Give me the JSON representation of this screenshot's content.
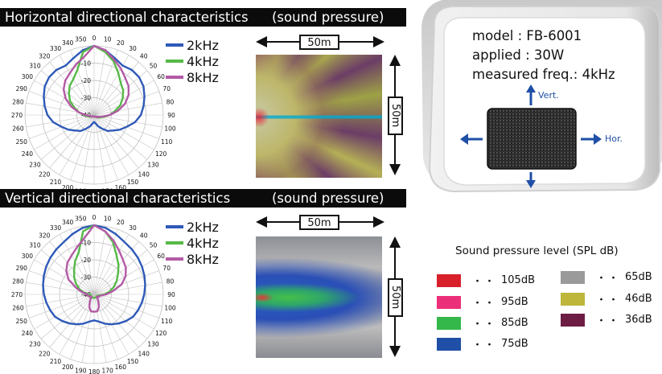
{
  "horizontal": {
    "title": "Horizontal directional characteristics",
    "subtitle": "(sound pressure)",
    "distance_x": "50m",
    "distance_y": "50m"
  },
  "vertical": {
    "title": "Vertical directional characteristics",
    "subtitle": "(sound pressure)",
    "distance_x": "50m",
    "distance_y": "50m"
  },
  "product": {
    "model": "model : FB-6001",
    "applied": "applied : 30W",
    "measured": "measured freq.: 4kHz",
    "vert_label": "Vert.",
    "hor_label": "Hor."
  },
  "spl_legend": {
    "title": "Sound pressure level (SPL dB)",
    "items": [
      {
        "label": "105dB",
        "color": "#d8202b"
      },
      {
        "label": "95dB",
        "color": "#ec2f79"
      },
      {
        "label": "85dB",
        "color": "#34b84a"
      },
      {
        "label": "75dB",
        "color": "#1f4fa6"
      },
      {
        "label": "65dB",
        "color": "#9a9a9a"
      },
      {
        "label": "46dB",
        "color": "#bdb63b"
      },
      {
        "label": "36dB",
        "color": "#6d1c43"
      }
    ]
  },
  "chart_data": [
    {
      "type": "polar-line",
      "title": "Horizontal directional characteristics",
      "angles_deg": [
        0,
        10,
        20,
        30,
        40,
        50,
        60,
        70,
        80,
        90,
        100,
        110,
        120,
        130,
        140,
        150,
        160,
        170,
        180,
        190,
        200,
        210,
        220,
        230,
        240,
        250,
        260,
        270,
        280,
        290,
        300,
        310,
        320,
        330,
        340,
        350
      ],
      "radial_ticks": [
        0,
        -10,
        -20,
        -30,
        -40
      ],
      "rlim": [
        -40,
        0
      ],
      "series": [
        {
          "name": "2kHz",
          "color": "#2e59b8",
          "values": [
            0,
            -2,
            -5,
            -7,
            -6,
            -6,
            -7,
            -9,
            -11,
            -13,
            -16,
            -20,
            -23,
            -26,
            -28,
            -31,
            -33,
            -35,
            -36,
            -35,
            -33,
            -31,
            -28,
            -26,
            -23,
            -20,
            -16,
            -13,
            -11,
            -9,
            -7,
            -6,
            -6,
            -7,
            -5,
            -2
          ]
        },
        {
          "name": "4kHz",
          "color": "#56b947",
          "values": [
            0,
            -3,
            -7,
            -12,
            -16,
            -18,
            -21,
            -24,
            -28,
            -31,
            -34,
            -36,
            -37,
            -38,
            -39,
            -39,
            -39,
            -39,
            -39,
            -39,
            -39,
            -39,
            -39,
            -39,
            -38,
            -37,
            -36,
            -34,
            -31,
            -28,
            -24,
            -21,
            -18,
            -16,
            -12,
            -3
          ]
        },
        {
          "name": "8kHz",
          "color": "#b35aa5",
          "values": [
            0,
            -2,
            -6,
            -9,
            -12,
            -14,
            -17,
            -21,
            -26,
            -31,
            -35,
            -37,
            -38,
            -38,
            -39,
            -39,
            -39,
            -39,
            -39,
            -39,
            -39,
            -39,
            -39,
            -39,
            -38,
            -38,
            -37,
            -35,
            -31,
            -26,
            -21,
            -17,
            -14,
            -12,
            -9,
            -6
          ]
        }
      ]
    },
    {
      "type": "polar-line",
      "title": "Vertical directional characteristics",
      "angles_deg": [
        0,
        10,
        20,
        30,
        40,
        50,
        60,
        70,
        80,
        90,
        100,
        110,
        120,
        130,
        140,
        150,
        160,
        170,
        180,
        190,
        200,
        210,
        220,
        230,
        240,
        250,
        260,
        270,
        280,
        290,
        300,
        310,
        320,
        330,
        340,
        350
      ],
      "radial_ticks": [
        0,
        -10,
        -20,
        -30,
        -40
      ],
      "rlim": [
        -40,
        0
      ],
      "series": [
        {
          "name": "2kHz",
          "color": "#2e59b8",
          "values": [
            0,
            -1,
            -3,
            -5,
            -6,
            -7,
            -8,
            -9,
            -10,
            -11,
            -12,
            -13,
            -14,
            -16,
            -18,
            -20,
            -22,
            -24,
            -25,
            -24,
            -22,
            -20,
            -18,
            -16,
            -14,
            -13,
            -12,
            -11,
            -10,
            -9,
            -8,
            -7,
            -6,
            -5,
            -3,
            -1
          ]
        },
        {
          "name": "4kHz",
          "color": "#56b947",
          "values": [
            0,
            -3,
            -8,
            -14,
            -18,
            -22,
            -25,
            -28,
            -31,
            -34,
            -37,
            -38,
            -38,
            -38,
            -38,
            -38,
            -38,
            -38,
            -38,
            -38,
            -38,
            -38,
            -38,
            -38,
            -38,
            -38,
            -38,
            -37,
            -34,
            -31,
            -28,
            -25,
            -22,
            -18,
            -14,
            -3
          ]
        },
        {
          "name": "8kHz",
          "color": "#b35aa5",
          "values": [
            0,
            -3,
            -7,
            -11,
            -14,
            -16,
            -19,
            -23,
            -29,
            -33,
            -36,
            -37,
            -37,
            -38,
            -37,
            -35,
            -32,
            -30,
            -30,
            -30,
            -32,
            -35,
            -37,
            -38,
            -37,
            -37,
            -36,
            -36,
            -33,
            -29,
            -23,
            -19,
            -16,
            -14,
            -11,
            -7
          ]
        }
      ]
    }
  ]
}
